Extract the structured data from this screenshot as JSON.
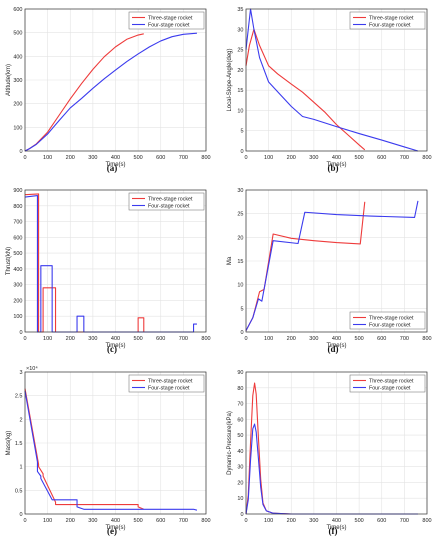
{
  "colors": {
    "three": "#ee3b3b",
    "four": "#3b3bee",
    "grid": "#e3e3e3",
    "axis": "#333333"
  },
  "chart_data": [
    {
      "id": "a",
      "type": "line",
      "caption": "(a)",
      "xlabel": "Time(s)",
      "ylabel": "Altitude(km)",
      "xlim": [
        0,
        800
      ],
      "ylim": [
        0,
        600
      ],
      "xticks": [
        0,
        100,
        200,
        300,
        400,
        500,
        600,
        700,
        800
      ],
      "yticks": [
        0,
        100,
        200,
        300,
        400,
        500,
        600
      ],
      "grid": true,
      "legend": "top-right",
      "series": [
        {
          "name": "Three-stage rocket",
          "color_key": "three",
          "points": [
            [
              0,
              0
            ],
            [
              20,
              10
            ],
            [
              50,
              30
            ],
            [
              100,
              80
            ],
            [
              150,
              150
            ],
            [
              200,
              220
            ],
            [
              250,
              285
            ],
            [
              300,
              345
            ],
            [
              350,
              398
            ],
            [
              400,
              440
            ],
            [
              450,
              472
            ],
            [
              500,
              490
            ],
            [
              525,
              495
            ]
          ]
        },
        {
          "name": "Four-stage rocket",
          "color_key": "four",
          "points": [
            [
              0,
              0
            ],
            [
              20,
              10
            ],
            [
              50,
              28
            ],
            [
              100,
              72
            ],
            [
              150,
              128
            ],
            [
              200,
              182
            ],
            [
              250,
              222
            ],
            [
              300,
              265
            ],
            [
              350,
              305
            ],
            [
              400,
              342
            ],
            [
              450,
              378
            ],
            [
              500,
              410
            ],
            [
              550,
              440
            ],
            [
              600,
              465
            ],
            [
              650,
              483
            ],
            [
              700,
              493
            ],
            [
              760,
              498
            ]
          ]
        }
      ]
    },
    {
      "id": "b",
      "type": "line",
      "caption": "(b)",
      "xlabel": "Time(s)",
      "ylabel": "Local-Slope-Angle(deg)",
      "xlim": [
        0,
        800
      ],
      "ylim": [
        0,
        35
      ],
      "xticks": [
        0,
        100,
        200,
        300,
        400,
        500,
        600,
        700,
        800
      ],
      "yticks": [
        0,
        5,
        10,
        15,
        20,
        25,
        30,
        35
      ],
      "grid": true,
      "legend": "top-right",
      "series": [
        {
          "name": "Three-stage rocket",
          "color_key": "three",
          "points": [
            [
              0,
              21
            ],
            [
              15,
              26
            ],
            [
              35,
              30
            ],
            [
              60,
              26
            ],
            [
              100,
              21
            ],
            [
              140,
              19
            ],
            [
              200,
              16.5
            ],
            [
              250,
              14.5
            ],
            [
              300,
              12
            ],
            [
              350,
              9.5
            ],
            [
              400,
              6.5
            ],
            [
              450,
              4
            ],
            [
              500,
              1.5
            ],
            [
              525,
              0.3
            ]
          ]
        },
        {
          "name": "Four-stage rocket",
          "color_key": "four",
          "points": [
            [
              0,
              25
            ],
            [
              20,
              35
            ],
            [
              35,
              30
            ],
            [
              60,
              23
            ],
            [
              100,
              17
            ],
            [
              150,
              14
            ],
            [
              200,
              11
            ],
            [
              250,
              8.5
            ],
            [
              300,
              7.8
            ],
            [
              400,
              6
            ],
            [
              500,
              4.3
            ],
            [
              600,
              2.7
            ],
            [
              700,
              1
            ],
            [
              760,
              0
            ]
          ]
        }
      ]
    },
    {
      "id": "c",
      "type": "line",
      "caption": "(c)",
      "xlabel": "Time(s)",
      "ylabel": "Thrust(kN)",
      "xlim": [
        0,
        800
      ],
      "ylim": [
        0,
        900
      ],
      "xticks": [
        0,
        100,
        200,
        300,
        400,
        500,
        600,
        700,
        800
      ],
      "yticks": [
        0,
        100,
        200,
        300,
        400,
        500,
        600,
        700,
        800,
        900
      ],
      "grid": true,
      "legend": "top-right",
      "series": [
        {
          "name": "Three-stage rocket",
          "color_key": "three",
          "points": [
            [
              0,
              870
            ],
            [
              60,
              875
            ],
            [
              60,
              0
            ],
            [
              80,
              0
            ],
            [
              80,
              280
            ],
            [
              135,
              280
            ],
            [
              135,
              0
            ],
            [
              500,
              0
            ],
            [
              500,
              90
            ],
            [
              525,
              90
            ],
            [
              525,
              0
            ]
          ]
        },
        {
          "name": "Four-stage rocket",
          "color_key": "four",
          "points": [
            [
              0,
              855
            ],
            [
              55,
              865
            ],
            [
              55,
              0
            ],
            [
              70,
              0
            ],
            [
              70,
              420
            ],
            [
              120,
              420
            ],
            [
              120,
              0
            ],
            [
              230,
              0
            ],
            [
              230,
              100
            ],
            [
              260,
              100
            ],
            [
              260,
              0
            ],
            [
              745,
              0
            ],
            [
              745,
              50
            ],
            [
              760,
              50
            ]
          ]
        }
      ]
    },
    {
      "id": "d",
      "type": "line",
      "caption": "(d)",
      "xlabel": "Time(s)",
      "ylabel": "Ma",
      "xlim": [
        0,
        800
      ],
      "ylim": [
        0,
        30
      ],
      "xticks": [
        0,
        100,
        200,
        300,
        400,
        500,
        600,
        700,
        800
      ],
      "yticks": [
        0,
        5,
        10,
        15,
        20,
        25,
        30
      ],
      "grid": true,
      "legend": "bottom-right",
      "series": [
        {
          "name": "Three-stage rocket",
          "color_key": "three",
          "points": [
            [
              0,
              0.3
            ],
            [
              30,
              3
            ],
            [
              60,
              8.5
            ],
            [
              80,
              9
            ],
            [
              120,
              20.7
            ],
            [
              200,
              19.8
            ],
            [
              300,
              19.3
            ],
            [
              400,
              18.9
            ],
            [
              505,
              18.6
            ],
            [
              525,
              27.5
            ]
          ]
        },
        {
          "name": "Four-stage rocket",
          "color_key": "four",
          "points": [
            [
              0,
              0.3
            ],
            [
              30,
              3
            ],
            [
              55,
              7
            ],
            [
              70,
              6.5
            ],
            [
              120,
              19.3
            ],
            [
              230,
              18.7
            ],
            [
              260,
              25.3
            ],
            [
              400,
              24.8
            ],
            [
              550,
              24.5
            ],
            [
              745,
              24.2
            ],
            [
              760,
              27.7
            ]
          ]
        }
      ]
    },
    {
      "id": "e",
      "type": "line",
      "caption": "(e)",
      "xlabel": "Time(s)",
      "ylabel": "Mass(kg)",
      "xlim": [
        0,
        800
      ],
      "ylim": [
        0,
        30000
      ],
      "xticks": [
        0,
        100,
        200,
        300,
        400,
        500,
        600,
        700,
        800
      ],
      "yticks": [
        0,
        5000,
        10000,
        15000,
        20000,
        25000,
        30000
      ],
      "ytick_labels": [
        "0",
        "0.5",
        "1",
        "1.5",
        "2",
        "2.5",
        "3"
      ],
      "exponent": "×10⁴",
      "grid": true,
      "legend": "top-right",
      "series": [
        {
          "name": "Three-stage rocket",
          "color_key": "three",
          "points": [
            [
              0,
              26500
            ],
            [
              60,
              10500
            ],
            [
              60,
              10000
            ],
            [
              80,
              8500
            ],
            [
              80,
              8000
            ],
            [
              135,
              2500
            ],
            [
              135,
              2000
            ],
            [
              500,
              2000
            ],
            [
              500,
              1500
            ],
            [
              525,
              1000
            ]
          ]
        },
        {
          "name": "Four-stage rocket",
          "color_key": "four",
          "points": [
            [
              0,
              26000
            ],
            [
              55,
              11000
            ],
            [
              55,
              9000
            ],
            [
              70,
              8000
            ],
            [
              70,
              7500
            ],
            [
              120,
              3000
            ],
            [
              230,
              3000
            ],
            [
              230,
              1500
            ],
            [
              260,
              1000
            ],
            [
              745,
              1000
            ],
            [
              760,
              800
            ]
          ]
        }
      ]
    },
    {
      "id": "f",
      "type": "line",
      "caption": "(f)",
      "xlabel": "Time(s)",
      "ylabel": "Dynamic-Pressure(kPa)",
      "xlim": [
        0,
        800
      ],
      "ylim": [
        0,
        90
      ],
      "xticks": [
        0,
        100,
        200,
        300,
        400,
        500,
        600,
        700,
        800
      ],
      "yticks": [
        0,
        10,
        20,
        30,
        40,
        50,
        60,
        70,
        80,
        90
      ],
      "grid": true,
      "legend": "top-right",
      "series": [
        {
          "name": "Three-stage rocket",
          "color_key": "three",
          "points": [
            [
              0,
              0
            ],
            [
              10,
              12
            ],
            [
              20,
              45
            ],
            [
              30,
              75
            ],
            [
              38,
              83
            ],
            [
              45,
              76
            ],
            [
              55,
              48
            ],
            [
              65,
              22
            ],
            [
              75,
              7
            ],
            [
              90,
              2
            ],
            [
              120,
              0.5
            ],
            [
              200,
              0
            ],
            [
              525,
              0
            ]
          ]
        },
        {
          "name": "Four-stage rocket",
          "color_key": "four",
          "points": [
            [
              0,
              0
            ],
            [
              10,
              9
            ],
            [
              20,
              34
            ],
            [
              30,
              54
            ],
            [
              38,
              57
            ],
            [
              45,
              52
            ],
            [
              55,
              35
            ],
            [
              65,
              17
            ],
            [
              75,
              6
            ],
            [
              90,
              2
            ],
            [
              120,
              0.5
            ],
            [
              200,
              0
            ],
            [
              760,
              0
            ]
          ]
        }
      ]
    }
  ]
}
